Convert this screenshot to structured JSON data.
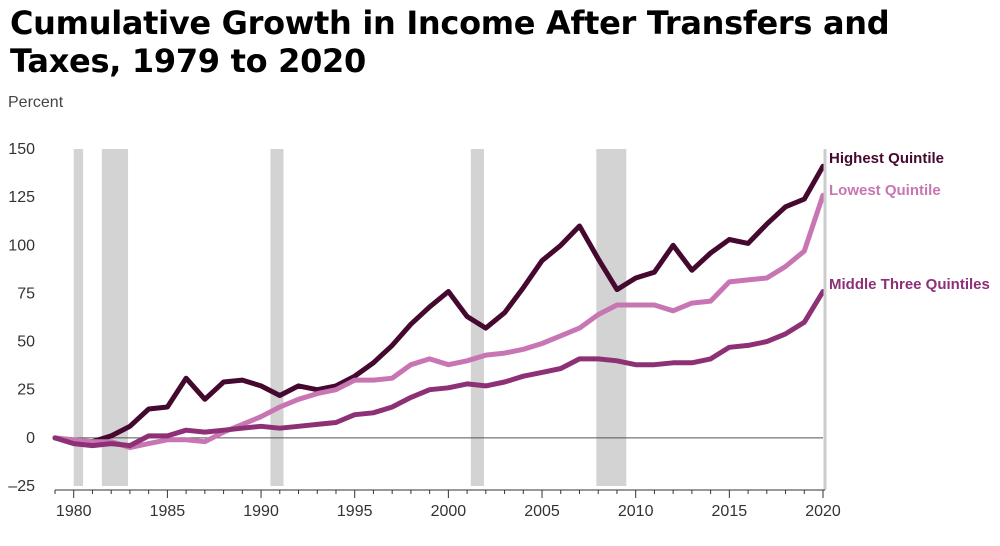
{
  "chart_data": {
    "type": "line",
    "title": "Cumulative Growth in Income After Transfers and Taxes, 1979 to 2020",
    "ylabel": "Percent",
    "xlabel": "",
    "ylim": [
      -25,
      150
    ],
    "xlim": [
      1979,
      2020
    ],
    "yticks": [
      -25,
      0,
      25,
      50,
      75,
      100,
      125,
      150
    ],
    "ytick_labels": [
      "–25",
      "0",
      "25",
      "50",
      "75",
      "100",
      "125",
      "150"
    ],
    "xticks": [
      1980,
      1985,
      1990,
      1995,
      2000,
      2005,
      2010,
      2015,
      2020
    ],
    "xtick_labels": [
      "1980",
      "1985",
      "1990",
      "1995",
      "2000",
      "2005",
      "2010",
      "2015",
      "2020"
    ],
    "recessions": [
      [
        1980.0,
        1980.5
      ],
      [
        1981.5,
        1982.9
      ],
      [
        1990.5,
        1991.2
      ],
      [
        2001.2,
        2001.9
      ],
      [
        2007.9,
        2009.5
      ]
    ],
    "x": [
      1979,
      1980,
      1981,
      1982,
      1983,
      1984,
      1985,
      1986,
      1987,
      1988,
      1989,
      1990,
      1991,
      1992,
      1993,
      1994,
      1995,
      1996,
      1997,
      1998,
      1999,
      2000,
      2001,
      2002,
      2003,
      2004,
      2005,
      2006,
      2007,
      2008,
      2009,
      2010,
      2011,
      2012,
      2013,
      2014,
      2015,
      2016,
      2017,
      2018,
      2019,
      2020
    ],
    "series": [
      {
        "name": "Highest Quintile",
        "color": "#45092f",
        "values": [
          0,
          -2,
          -2,
          1,
          6,
          15,
          16,
          31,
          20,
          29,
          30,
          27,
          22,
          27,
          25,
          27,
          32,
          39,
          48,
          59,
          68,
          76,
          63,
          57,
          65,
          78,
          92,
          100,
          110,
          93,
          77,
          83,
          86,
          100,
          87,
          96,
          103,
          101,
          111,
          120,
          124,
          141
        ]
      },
      {
        "name": "Lowest Quintile",
        "color": "#c875b4",
        "values": [
          0,
          -1,
          -2,
          -2,
          -5,
          -3,
          -1,
          -1,
          -2,
          3,
          7,
          11,
          16,
          20,
          23,
          25,
          30,
          30,
          31,
          38,
          41,
          38,
          40,
          43,
          44,
          46,
          49,
          53,
          57,
          64,
          69,
          69,
          69,
          66,
          70,
          71,
          81,
          82,
          83,
          89,
          97,
          126
        ]
      },
      {
        "name": "Middle Three Quintiles",
        "color": "#8d3076",
        "values": [
          0,
          -3,
          -4,
          -3,
          -4,
          1,
          1,
          4,
          3,
          4,
          5,
          6,
          5,
          6,
          7,
          8,
          12,
          13,
          16,
          21,
          25,
          26,
          28,
          27,
          29,
          32,
          34,
          36,
          41,
          41,
          40,
          38,
          38,
          39,
          39,
          41,
          47,
          48,
          50,
          54,
          60,
          76
        ]
      }
    ]
  }
}
